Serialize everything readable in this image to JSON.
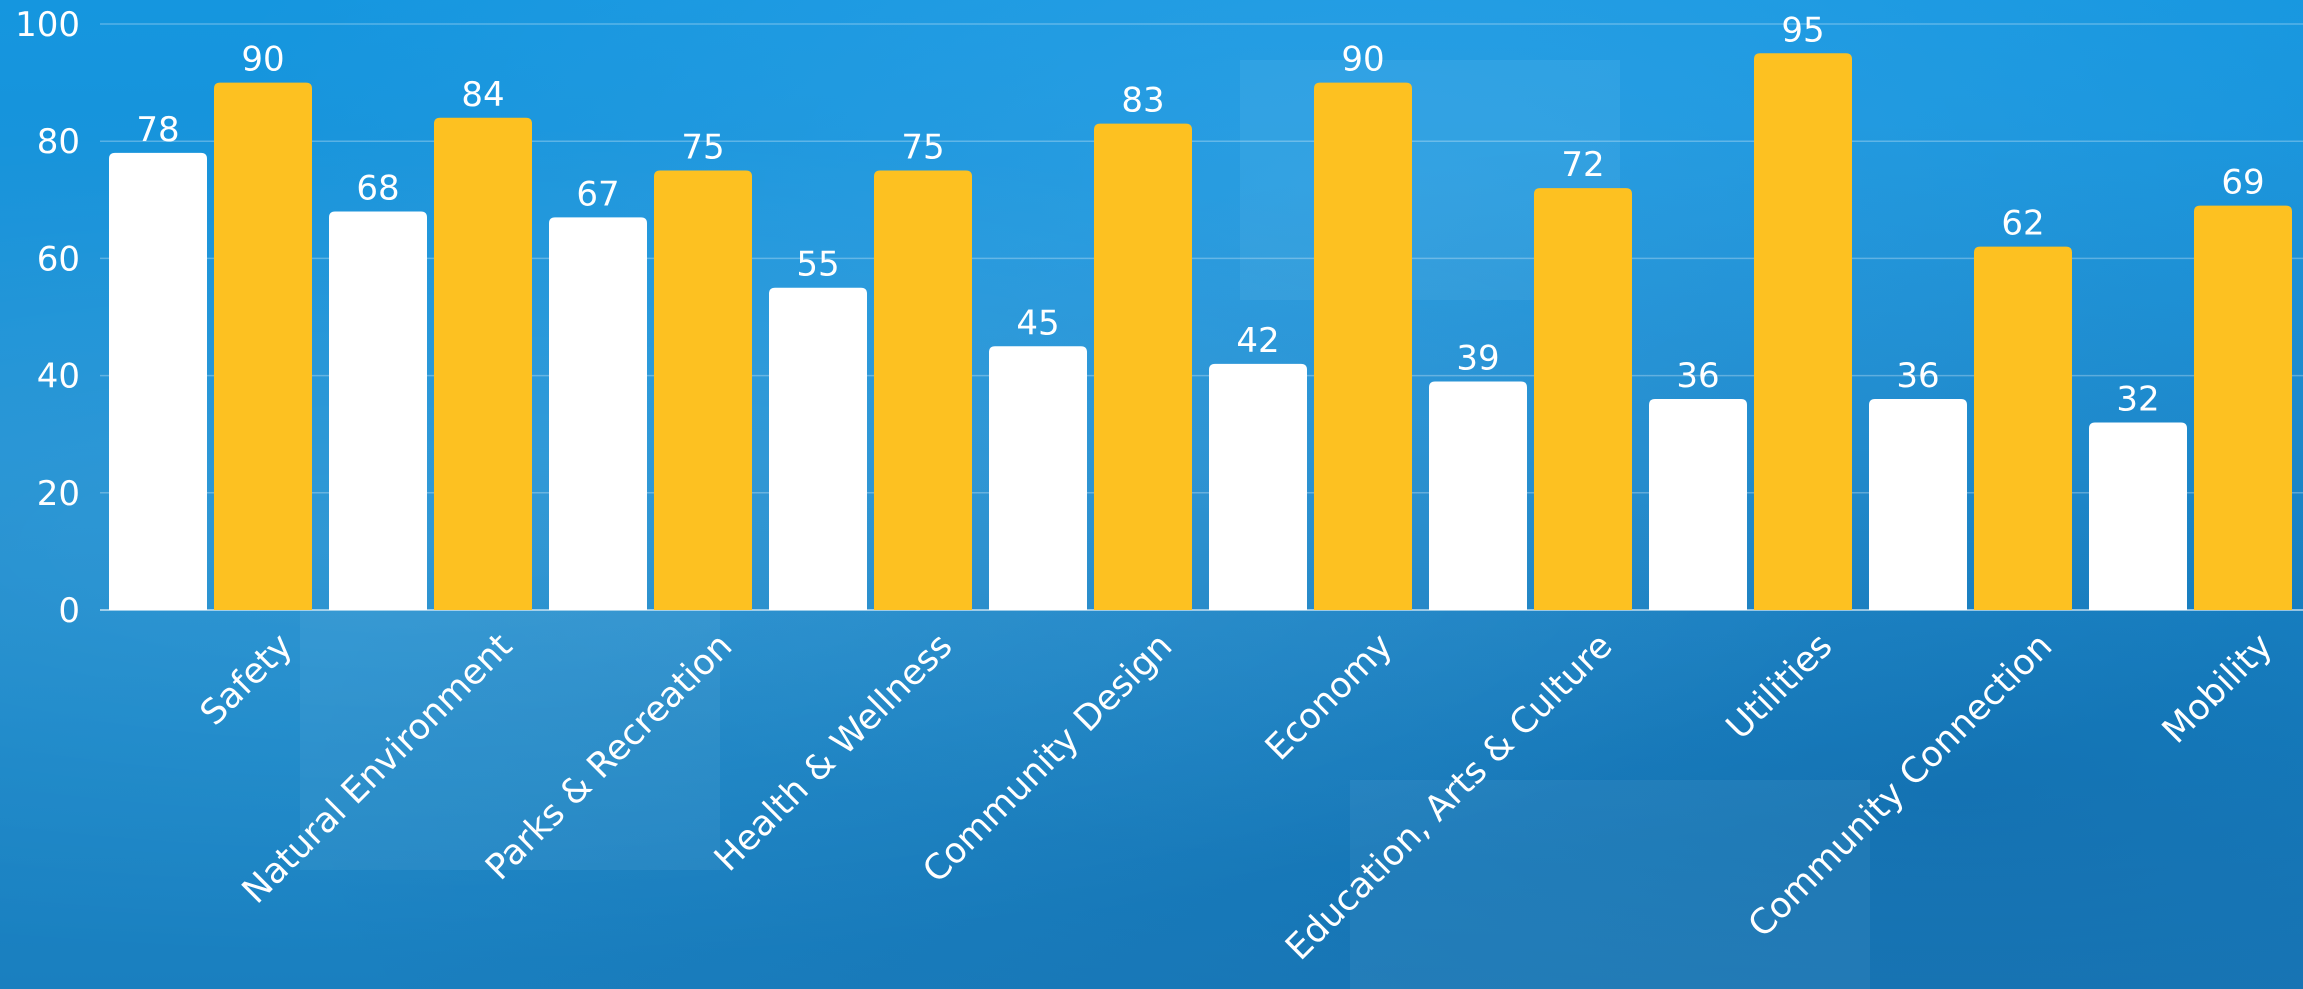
{
  "chart_data": {
    "type": "bar",
    "title": "",
    "xlabel": "",
    "ylabel": "",
    "ylim": [
      0,
      100
    ],
    "yticks": [
      0,
      20,
      40,
      60,
      80,
      100
    ],
    "grid": true,
    "legend": "none",
    "categories": [
      "Safety",
      "Natural Environment",
      "Parks & Recreation",
      "Health & Wellness",
      "Community Design",
      "Economy",
      "Education, Arts & Culture",
      "Utilities",
      "Community Connection",
      "Mobility"
    ],
    "series": [
      {
        "color": "#ffffff",
        "values": [
          78,
          68,
          67,
          55,
          45,
          42,
          39,
          36,
          36,
          32
        ]
      },
      {
        "color": "#fdc121",
        "values": [
          90,
          84,
          75,
          75,
          83,
          90,
          72,
          95,
          62,
          69
        ]
      }
    ],
    "background_color": "#1a8fd6",
    "text_color": "#ffffff"
  }
}
